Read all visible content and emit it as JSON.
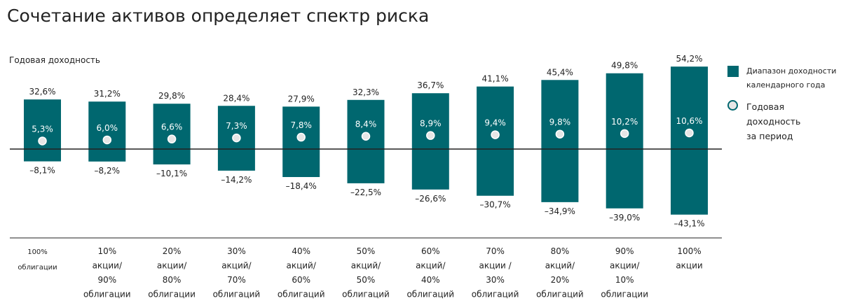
{
  "title": "Сочетание активов определяет спектр риска",
  "chart_data": {
    "type": "bar",
    "ylabel": "Годовая доходность",
    "categories": [
      [
        "100%",
        "облигации"
      ],
      [
        "10%",
        "акции/",
        "90%",
        "облигации"
      ],
      [
        "20%",
        "акции/",
        "80%",
        "облигации"
      ],
      [
        "30%",
        "акций/",
        "70%",
        "облигаций"
      ],
      [
        "40%",
        "акций/",
        "60%",
        "облигаций"
      ],
      [
        "50%",
        "акций/",
        "50%",
        "облигаций"
      ],
      [
        "60%",
        "акций/",
        "40%",
        "облигаций"
      ],
      [
        "70%",
        "акции /",
        "30%",
        "облигаций"
      ],
      [
        "80%",
        "акций/",
        "20%",
        "облигаций"
      ],
      [
        "90%",
        "акции/",
        "10%",
        "облигации"
      ],
      [
        "100%",
        "акции"
      ]
    ],
    "series": [
      {
        "name": "Диапазон доходности календарного года",
        "type": "range",
        "high": [
          32.6,
          31.2,
          29.8,
          28.4,
          27.9,
          32.3,
          36.7,
          41.1,
          45.4,
          49.8,
          54.2
        ],
        "low": [
          -8.1,
          -8.2,
          -10.1,
          -14.2,
          -18.4,
          -22.5,
          -26.6,
          -30.7,
          -34.9,
          -39.0,
          -43.1
        ]
      },
      {
        "name": "Годовая доходность за период",
        "type": "point",
        "values": [
          5.3,
          6.0,
          6.6,
          7.3,
          7.8,
          8.4,
          8.9,
          9.4,
          9.8,
          10.2,
          10.6
        ]
      }
    ],
    "high_labels": [
      "32,6%",
      "31,2%",
      "29,8%",
      "28,4%",
      "27,9%",
      "32,3%",
      "36,7%",
      "41,1%",
      "45,4%",
      "49,8%",
      "54,2%"
    ],
    "low_labels": [
      "–8,1%",
      "–8,2%",
      "–10,1%",
      "–14,2%",
      "–18,4%",
      "–22,5%",
      "–26,6%",
      "–30,7%",
      "–34,9%",
      "–39,0%",
      "–43,1%"
    ],
    "avg_labels": [
      "5,3%",
      "6,0%",
      "6,6%",
      "7,3%",
      "7,8%",
      "8,4%",
      "8,9%",
      "9,4%",
      "9,8%",
      "10,2%",
      "10,6%"
    ],
    "legend_position": "right",
    "grid": false,
    "colors": {
      "bar": "#00676f",
      "point_fill": "#e6e6e6",
      "point_stroke": "#ffffff",
      "axis": "#222222"
    }
  },
  "legend": {
    "range_label": [
      "Диапазон доходности",
      "календарного года"
    ],
    "point_label": [
      "Годовая доходность",
      "за период"
    ]
  }
}
